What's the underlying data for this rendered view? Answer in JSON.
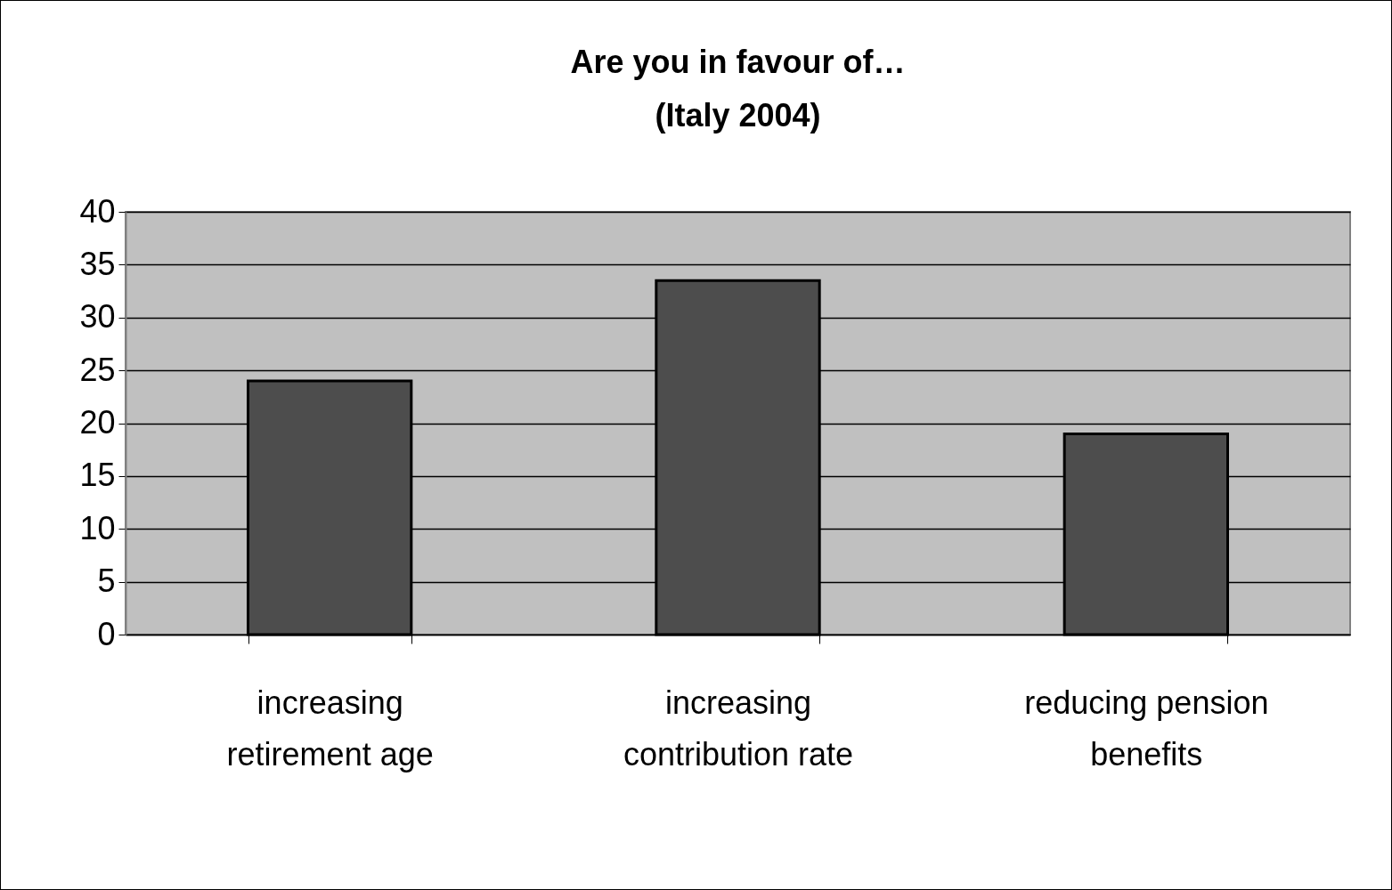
{
  "chart_data": {
    "type": "bar",
    "title": "Are you in favour of…\n(Italy 2004)",
    "categories": [
      "increasing retirement age",
      "increasing contribution rate",
      "reducing pension benefits"
    ],
    "values": [
      24,
      33.5,
      19
    ],
    "color": "#4d4d4d",
    "ylim": [
      0,
      40
    ],
    "yticks": [
      0,
      5,
      10,
      15,
      20,
      25,
      30,
      35,
      40
    ],
    "grid": "y"
  }
}
